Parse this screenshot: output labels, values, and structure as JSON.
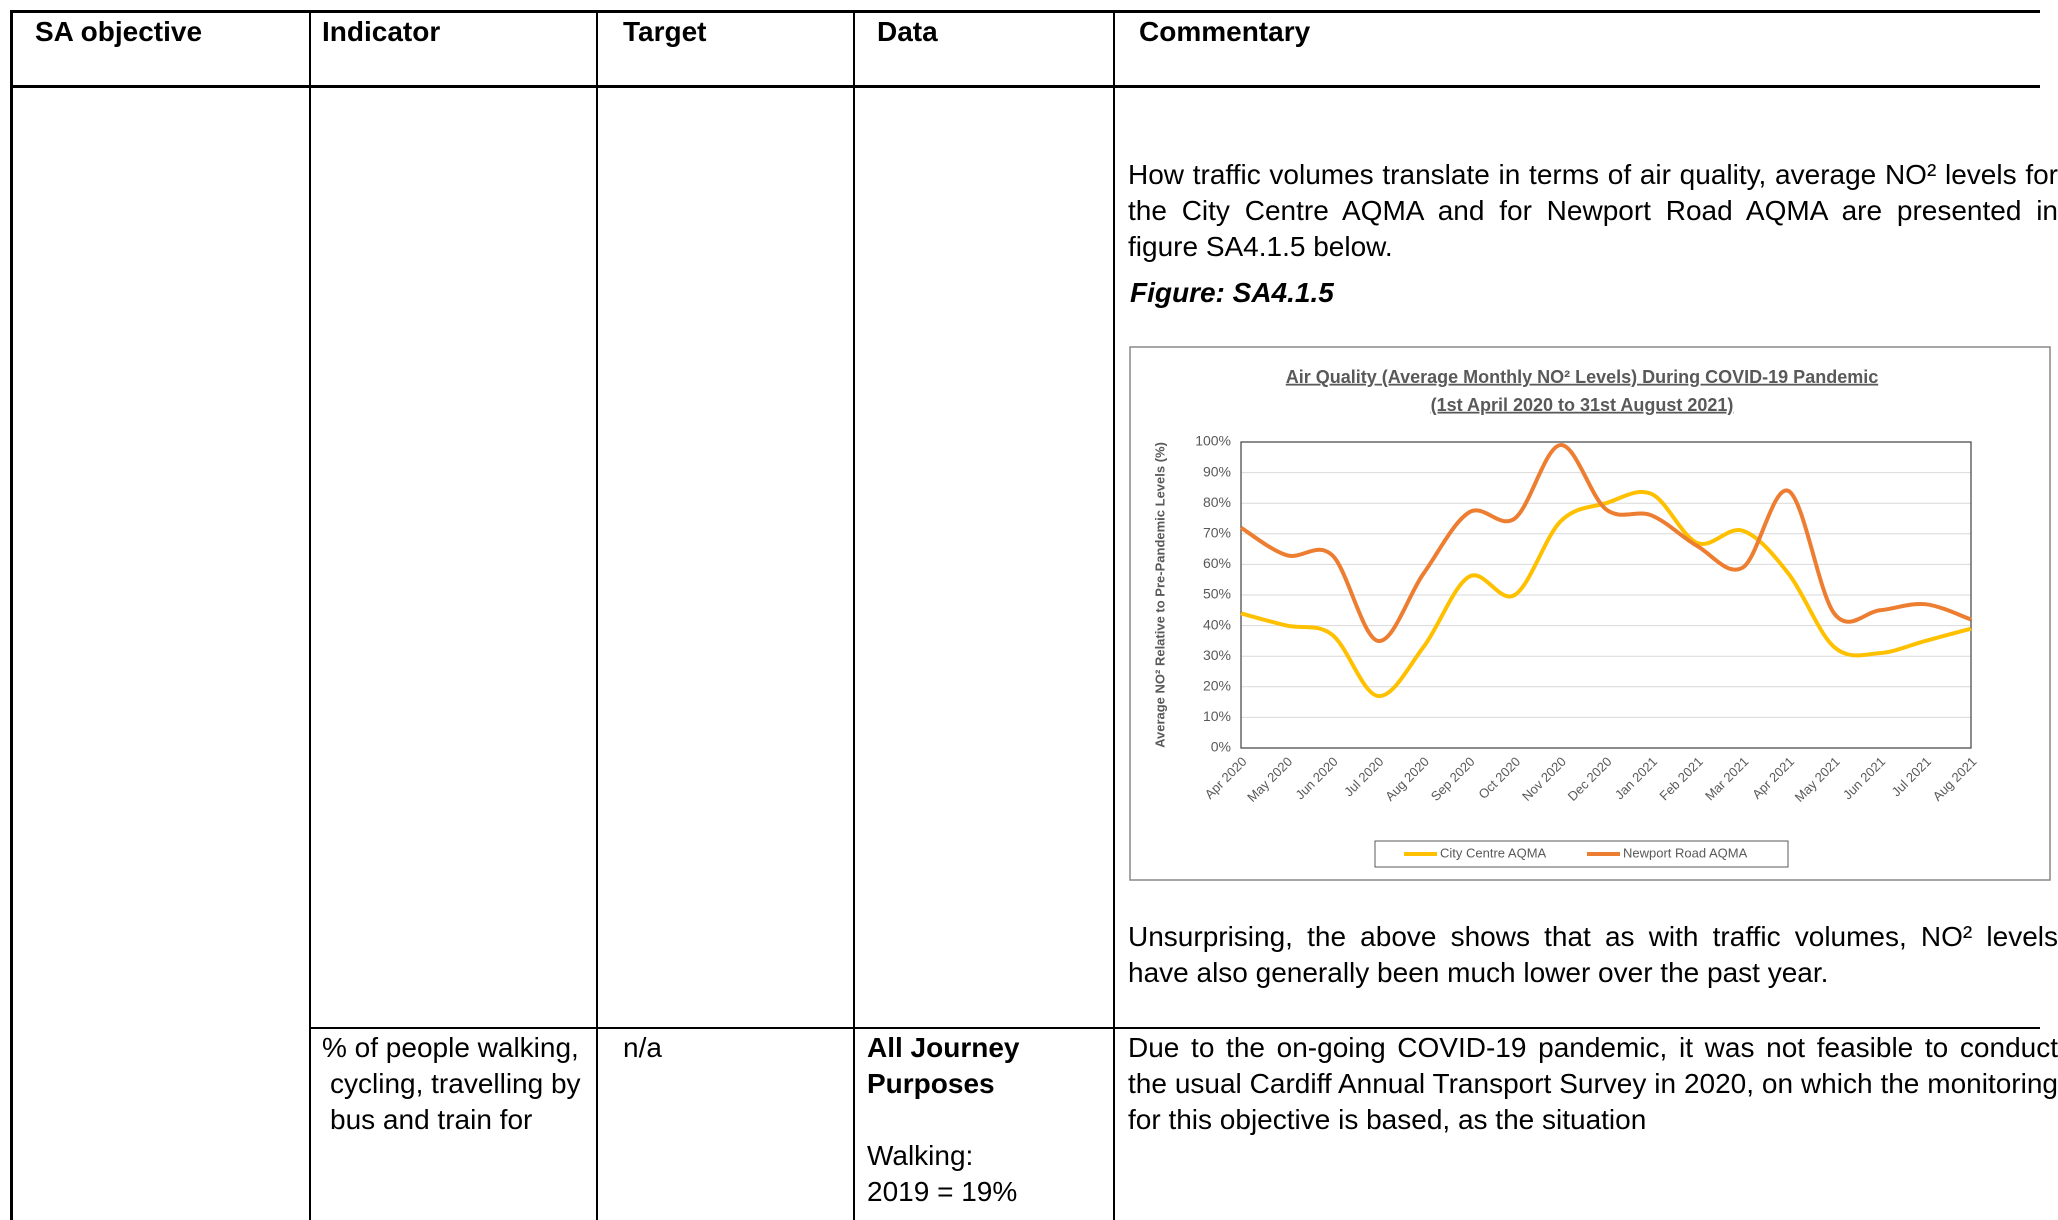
{
  "table": {
    "header": [
      "SA objective",
      "Indicator",
      "Target",
      "Data",
      "Commentary"
    ],
    "rows": [
      {
        "commentary": {
          "paragraph_1": "How traffic volumes translate in terms of air quality, average NO² levels for the City Centre AQMA and for Newport Road AQMA are presented in figure SA4.1.5 below.",
          "figure_label": "Figure: SA4.1.5",
          "paragraph_2": "Unsurprising, the above shows that as with traffic volumes, NO² levels have also generally been much lower over the past year."
        }
      },
      {
        "indicator": "% of people walking, cycling, travelling by bus and train for",
        "target": "n/a",
        "data": [
          "All Journey Purposes",
          "Walking:",
          "2019 = 19%"
        ],
        "commentary": "Due to the on-going COVID-19 pandemic, it was not feasible to conduct the usual Cardiff Annual Transport Survey in 2020, on which the monitoring for this objective is based, as the situation"
      }
    ]
  },
  "chart_data": {
    "type": "line",
    "title": "Air Quality (Average Monthly NO² Levels) During COVID-19 Pandemic",
    "subtitle": "(1st April 2020 to 31st August 2021)",
    "y_label": "Average NO² Relative to Pre-Pandemic Levels (%)",
    "categories": [
      "Apr 2020",
      "May 2020",
      "Jun 2020",
      "Jul 2020",
      "Aug 2020",
      "Sep 2020",
      "Oct 2020",
      "Nov 2020",
      "Dec 2020",
      "Jan 2021",
      "Feb 2021",
      "Mar 2021",
      "Apr 2021",
      "May 2021",
      "Jun 2021",
      "Jul 2021",
      "Aug 2021"
    ],
    "series": [
      {
        "name": "City Centre AQMA",
        "color": "#ffc000",
        "values": [
          44,
          40,
          37,
          17,
          33,
          56,
          50,
          74,
          80,
          83,
          67,
          71,
          57,
          33,
          31,
          35,
          39
        ]
      },
      {
        "name": "Newport Road AQMA",
        "color": "#ed7d31",
        "values": [
          72,
          63,
          63,
          35,
          57,
          77,
          75,
          99,
          78,
          76,
          66,
          59,
          84,
          44,
          45,
          47,
          42
        ]
      }
    ],
    "ylim": [
      0,
      100
    ],
    "yticks": [
      {
        "value": 0,
        "label": "0%"
      },
      {
        "value": 10,
        "label": "10%"
      },
      {
        "value": 20,
        "label": "20%"
      },
      {
        "value": 30,
        "label": "30%"
      },
      {
        "value": 40,
        "label": "40%"
      },
      {
        "value": 50,
        "label": "50%"
      },
      {
        "value": 60,
        "label": "60%"
      },
      {
        "value": 70,
        "label": "70%"
      },
      {
        "value": 80,
        "label": "80%"
      },
      {
        "value": 90,
        "label": "90%"
      },
      {
        "value": 100,
        "label": "100%"
      }
    ],
    "grid": true,
    "legend": "bottom",
    "smooth": true
  }
}
